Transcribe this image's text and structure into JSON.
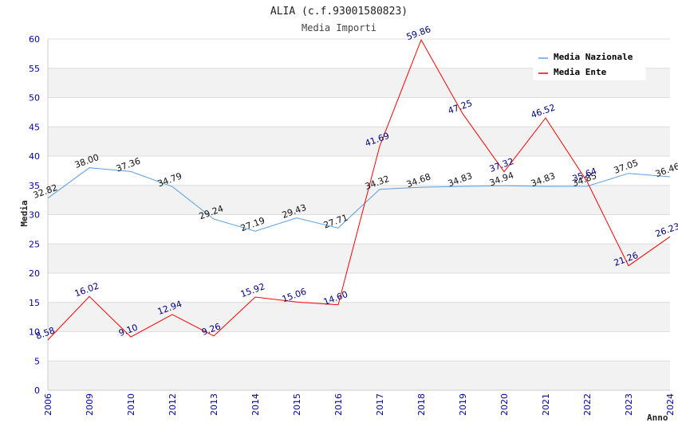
{
  "chart_data": {
    "type": "line",
    "title": "ALIA (c.f.93001580823)",
    "subtitle": "Media Importi",
    "xlabel": "Anno",
    "ylabel": "Media",
    "ylim": [
      0,
      60
    ],
    "yticks": [
      0,
      5,
      10,
      15,
      20,
      25,
      30,
      35,
      40,
      45,
      50,
      55,
      60
    ],
    "grid": true,
    "legend_position": "top-right",
    "categories": [
      "2006",
      "2009",
      "2010",
      "2012",
      "2013",
      "2014",
      "2015",
      "2016",
      "2017",
      "2018",
      "2019",
      "2020",
      "2021",
      "2022",
      "2023",
      "2024"
    ],
    "series": [
      {
        "name": "Media Nazionale",
        "color": "#5aa0e0",
        "values": [
          32.82,
          38.0,
          37.36,
          34.79,
          29.24,
          27.19,
          29.43,
          27.71,
          34.32,
          34.68,
          34.83,
          34.94,
          34.83,
          34.85,
          37.05,
          36.46
        ],
        "labels": [
          "32.82",
          "38.00",
          "37.36",
          "34.79",
          "29.24",
          "27.19",
          "29.43",
          "27.71",
          "34.32",
          "34.68",
          "34.83",
          "34.94",
          "34.83",
          "34.85",
          "37.05",
          "36.46"
        ]
      },
      {
        "name": "Media Ente",
        "color": "#ff0000",
        "values": [
          8.58,
          16.02,
          9.1,
          12.94,
          9.26,
          15.92,
          15.06,
          14.6,
          41.69,
          59.86,
          47.25,
          37.32,
          46.52,
          35.64,
          21.26,
          26.23
        ],
        "labels": [
          "8.58",
          "16.02",
          "9.10",
          "12.94",
          "9.26",
          "15.92",
          "15.06",
          "14.60",
          "41.69",
          "59.86",
          "47.25",
          "37.32",
          "46.52",
          "35.64",
          "21.26",
          "26.23"
        ]
      }
    ]
  }
}
